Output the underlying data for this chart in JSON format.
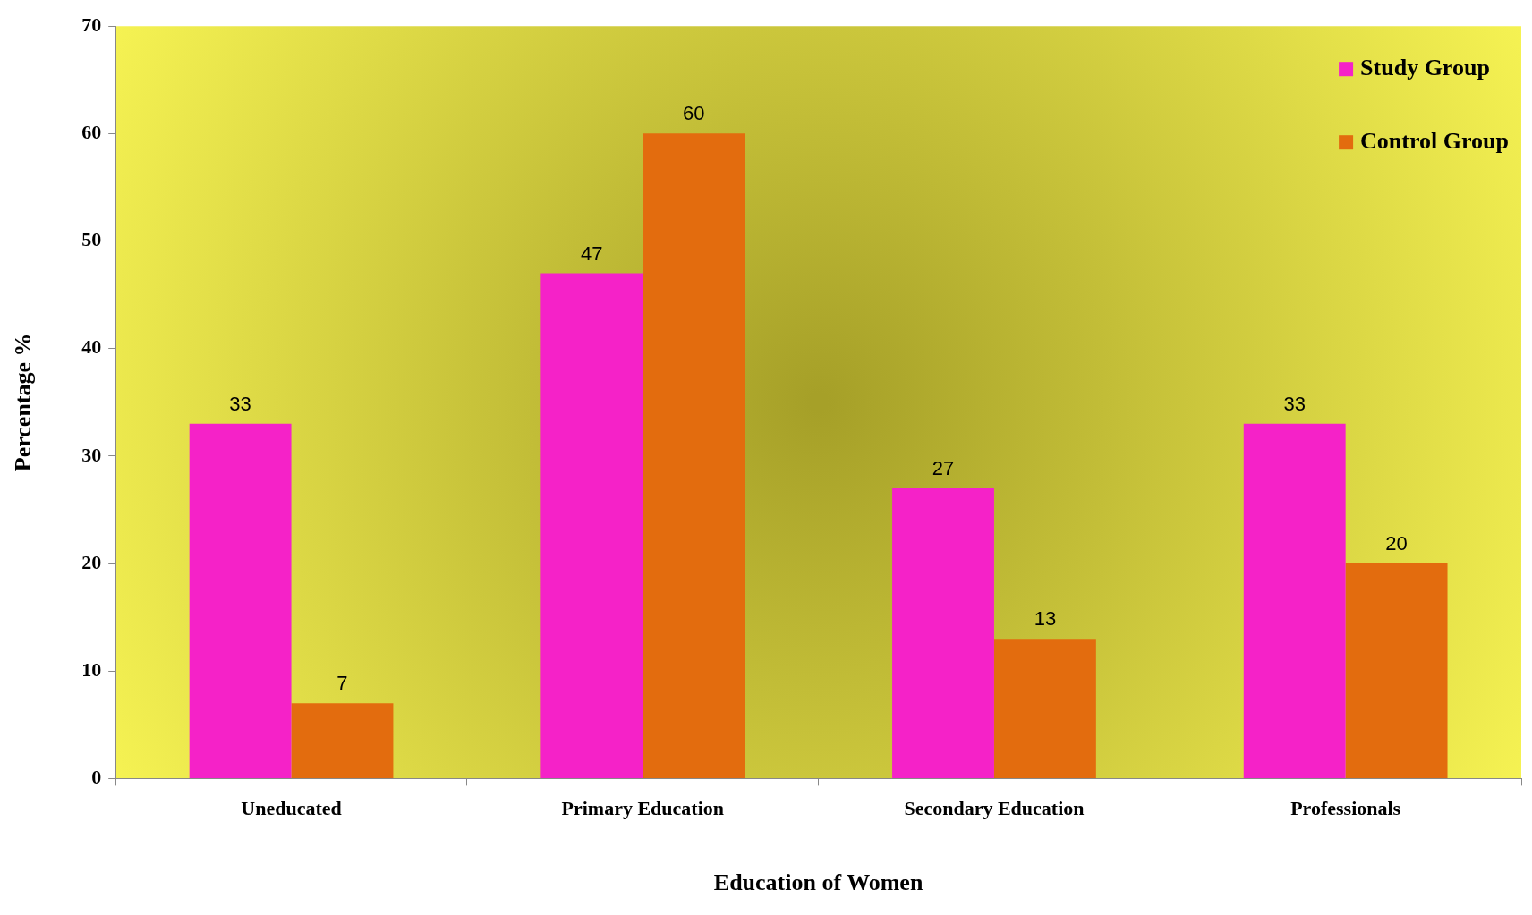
{
  "chart_data": {
    "type": "bar",
    "xlabel": "Education of Women",
    "ylabel": "Percentage %",
    "categories": [
      "Uneducated",
      "Primary Education",
      "Secondary Education",
      "Professionals"
    ],
    "series": [
      {
        "name": "Study Group",
        "color": "#f522c8",
        "values": [
          33,
          47,
          27,
          33
        ]
      },
      {
        "name": "Control Group",
        "color": "#e36c0e",
        "values": [
          7,
          60,
          13,
          20
        ]
      }
    ],
    "ylim": [
      0,
      70
    ],
    "yticks": [
      0,
      10,
      20,
      30,
      40,
      50,
      60,
      70
    ],
    "grid": false,
    "legend": "top right",
    "data_labels": true
  }
}
